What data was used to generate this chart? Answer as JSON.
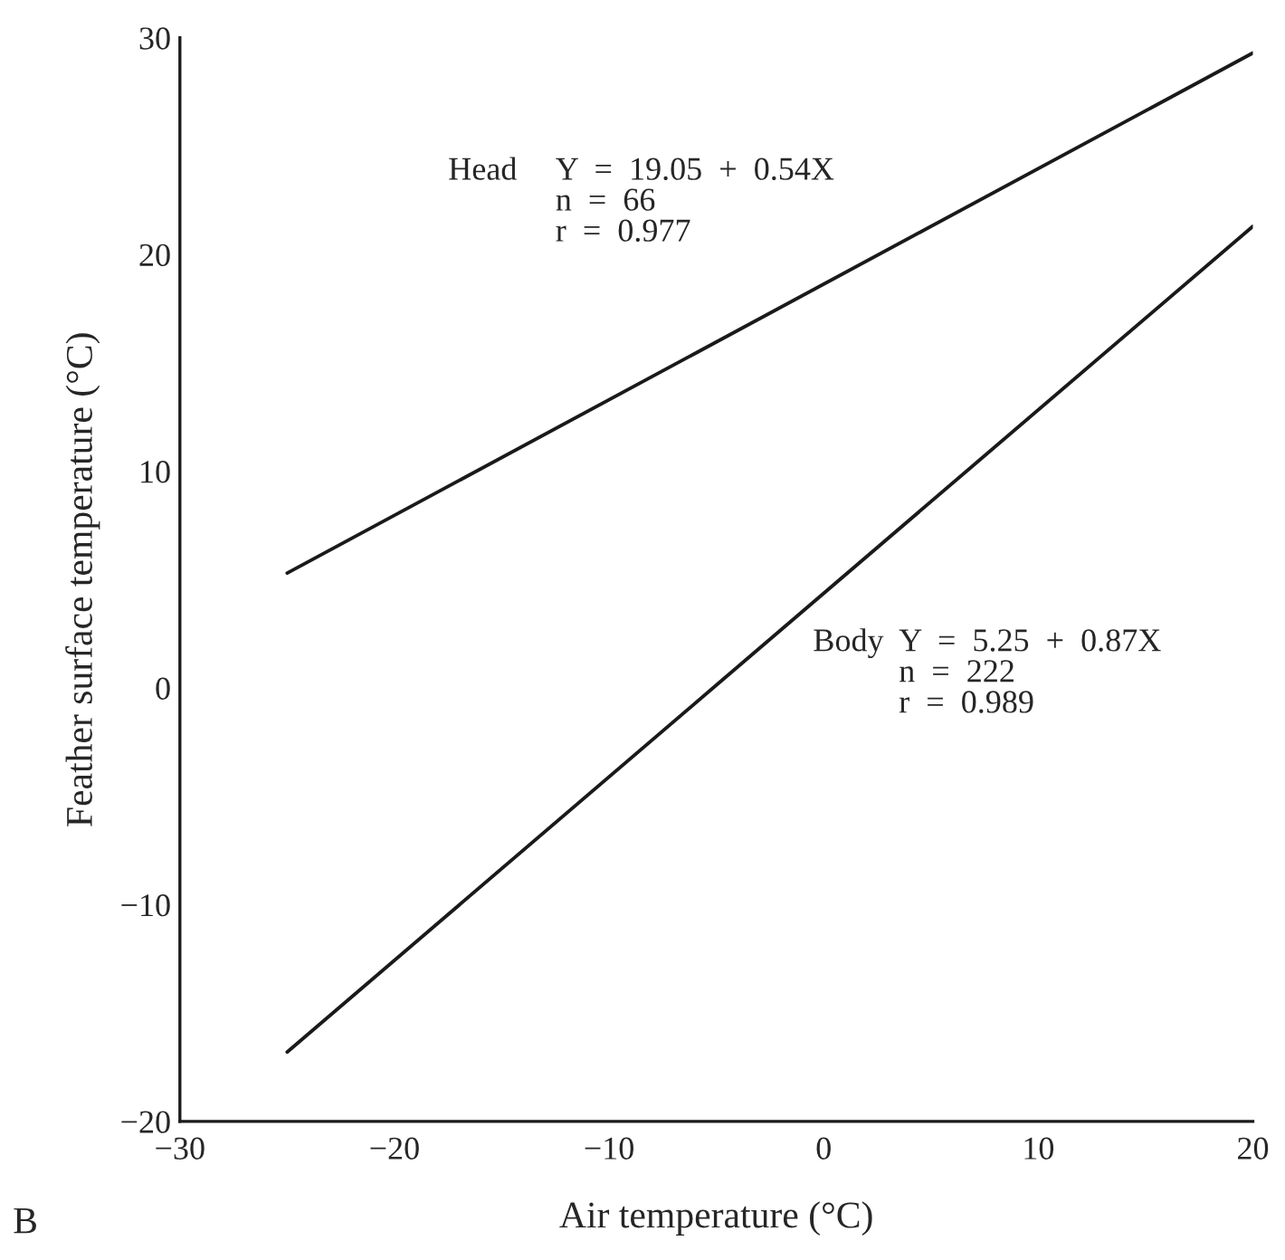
{
  "chart_data": {
    "type": "line",
    "xlabel": "Air temperature (°C)",
    "ylabel": "Feather surface temperature (°C)",
    "x": [
      -25,
      20
    ],
    "series": [
      {
        "color": "#1a1a1a",
        "values": [
          5.3,
          29.3
        ]
      },
      {
        "color": "#1a1a1a",
        "values": [
          -16.8,
          21.3
        ]
      }
    ],
    "xlim": [
      -30,
      20
    ],
    "ylim": [
      -20,
      30
    ],
    "xticks": [
      {
        "value": -30,
        "label": "−30"
      },
      {
        "value": -20,
        "label": "−20"
      },
      {
        "value": -10,
        "label": "−10"
      },
      0,
      10,
      20
    ],
    "yticks": [
      {
        "value": -20,
        "label": "−20"
      },
      {
        "value": -10,
        "label": "−10"
      },
      0,
      10,
      20,
      30
    ],
    "grid": false,
    "legend": false,
    "marker": "none",
    "line_style": "solid",
    "annotations": [
      "Head",
      "Y  =  19.05  +  0.54X\nn  =  66\nr  =  0.977",
      "Body",
      "Y  =  5.25  +  0.87X\nn  =  222\nr  =  0.989",
      "B"
    ]
  }
}
